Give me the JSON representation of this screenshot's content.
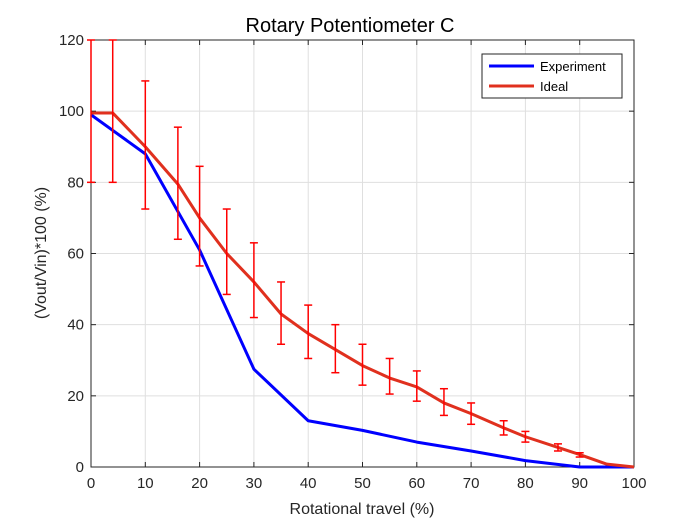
{
  "chart_data": {
    "type": "line",
    "title": "Rotary Potentiometer C",
    "xlabel": "Rotational travel (%)",
    "ylabel": "(Vout/Vin)*100 (%)",
    "xlim": [
      0,
      100
    ],
    "ylim": [
      0,
      120
    ],
    "xticks": [
      0,
      10,
      20,
      30,
      40,
      50,
      60,
      70,
      80,
      90,
      100
    ],
    "yticks": [
      0,
      20,
      40,
      60,
      80,
      100,
      120
    ],
    "grid": true,
    "legend_position": "top-right",
    "series": [
      {
        "name": "Experiment",
        "color": "#0000ff",
        "x": [
          0,
          10,
          20,
          30,
          40,
          50,
          60,
          70,
          80,
          90,
          100
        ],
        "y": [
          99,
          88,
          61,
          27.5,
          13,
          10.3,
          7,
          4.5,
          1.8,
          0,
          0
        ]
      },
      {
        "name": "Ideal",
        "color": "#e0301e",
        "x": [
          0,
          4,
          10,
          16,
          20,
          25,
          30,
          35,
          40,
          45,
          50,
          55,
          60,
          65,
          70,
          76,
          80,
          86,
          90,
          95,
          100
        ],
        "y": [
          99.5,
          99.5,
          90,
          79.5,
          70,
          60,
          52,
          43,
          37.5,
          33,
          28.5,
          25,
          22.5,
          18,
          15,
          11,
          8.5,
          5.5,
          3.5,
          0.8,
          0
        ]
      }
    ],
    "error_bars": {
      "color": "#ff0000",
      "x": [
        0,
        4,
        10,
        16,
        20,
        25,
        30,
        35,
        40,
        45,
        50,
        55,
        60,
        65,
        70,
        76,
        80,
        86,
        90
      ],
      "low": [
        80,
        80,
        72.5,
        64,
        56.5,
        48.5,
        42,
        34.5,
        30.5,
        26.5,
        23,
        20.5,
        18.5,
        14.5,
        12,
        9,
        7,
        4.5,
        2.8
      ],
      "high": [
        120,
        120,
        108.5,
        95.5,
        84.5,
        72.5,
        63,
        52,
        45.5,
        40,
        34.5,
        30.5,
        27,
        22,
        18,
        13,
        10,
        6.5,
        4
      ]
    }
  }
}
